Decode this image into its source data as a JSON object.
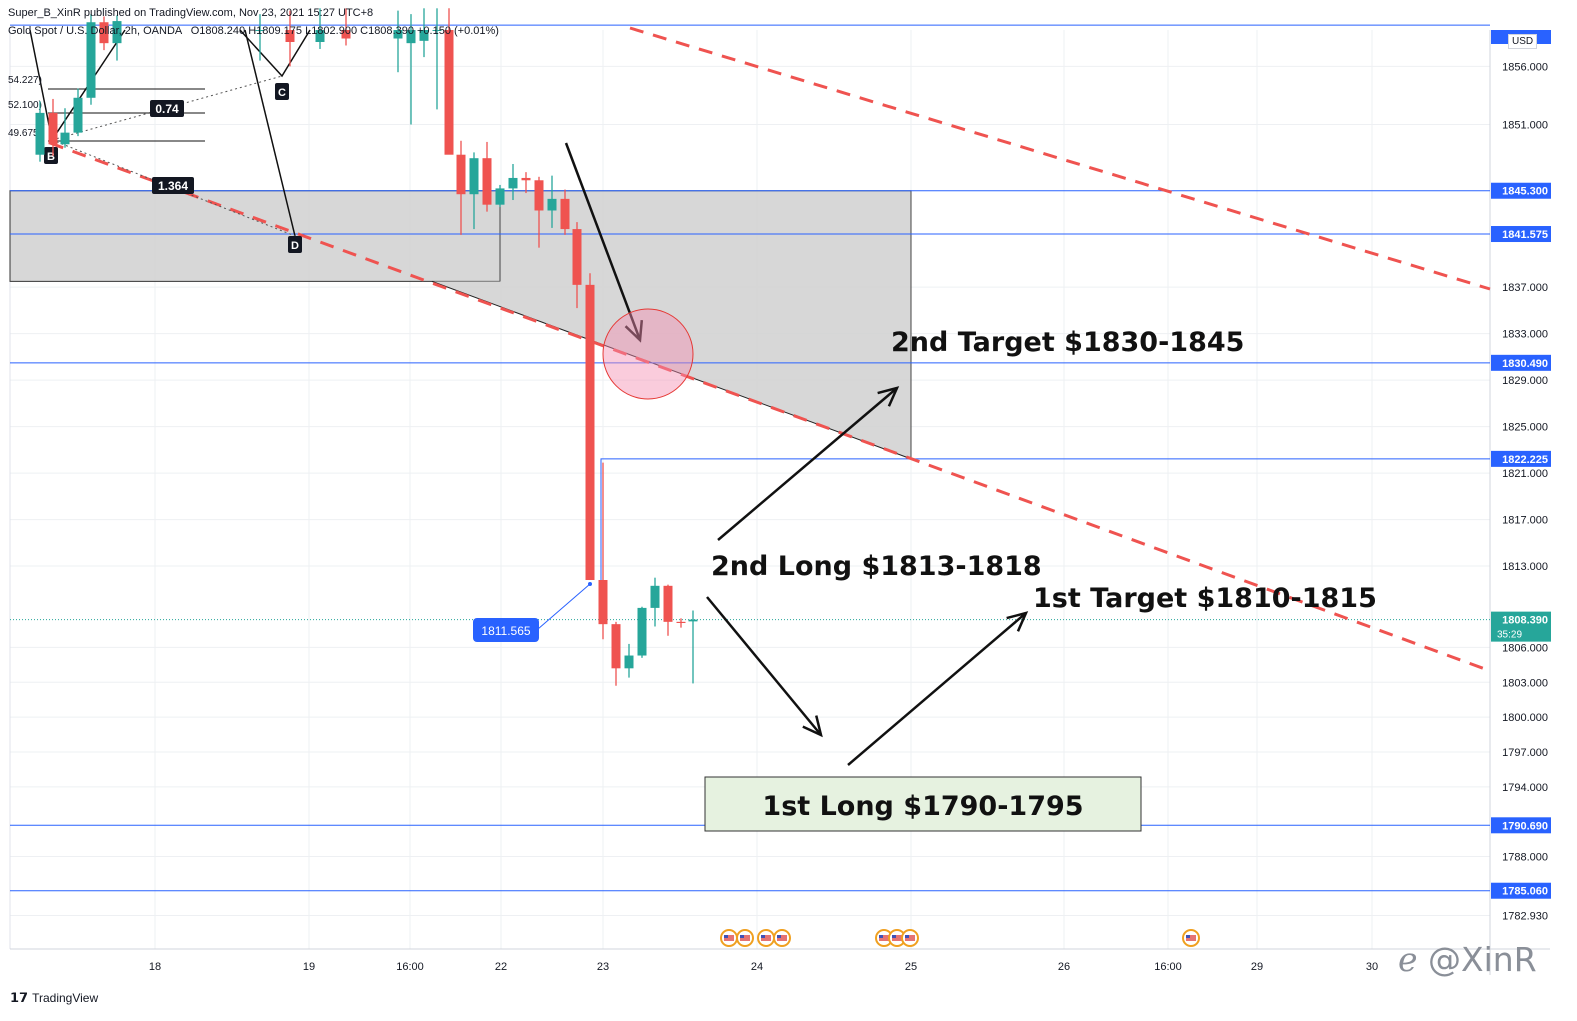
{
  "header": {
    "published": "Super_B_XinR published on TradingView.com, Nov 23, 2021 15:27 UTC+8",
    "symbol": "Gold Spot / U.S. Dollar, 2h, OANDA",
    "ohlc": "O1808.240  H1809.175  L1802.900  C1808.390  +0.150 (+0.01%)"
  },
  "currency": "USD",
  "brand": "TradingView",
  "watermark": "@XinR",
  "colors": {
    "up": "#26a69a",
    "down": "#ef5350",
    "level": "#2962ff",
    "trend": "#ef5350",
    "zone": "#d0d0d0"
  },
  "chart_data": {
    "type": "candlestick",
    "y_axis": {
      "range": [
        1780.8,
        1860.0
      ],
      "ticks": [
        1856.0,
        1851.0,
        1837.0,
        1833.0,
        1829.0,
        1825.0,
        1821.0,
        1817.0,
        1813.0,
        1806.0,
        1803.0,
        1800.0,
        1797.0,
        1794.0,
        1788.0,
        1782.93
      ]
    },
    "x_axis": {
      "ticks": [
        "18",
        "19",
        "16:00",
        "22",
        "23",
        "24",
        "25",
        "26",
        "16:00",
        "29",
        "30"
      ]
    },
    "price_labels": [
      {
        "text": "1845.300",
        "value": 1845.3
      },
      {
        "text": "1841.575",
        "value": 1841.575
      },
      {
        "text": "1830.490",
        "value": 1830.49
      },
      {
        "text": "1822.225",
        "value": 1822.225
      },
      {
        "text": "1790.690",
        "value": 1790.69
      },
      {
        "text": "1785.060",
        "value": 1785.06
      }
    ],
    "current_price": {
      "text": "1808.390",
      "countdown": "35:29",
      "value": 1808.39
    },
    "pattern_points": [
      {
        "label": "B"
      },
      {
        "label": "C"
      },
      {
        "label": "D"
      }
    ],
    "fib_labels": [
      "0.74",
      "1.364"
    ],
    "fib_levels": [
      "54.227)",
      "52.100)",
      "49.675)"
    ],
    "callout": "1811.565",
    "annotations": [
      "2nd Target $1830-1845",
      "2nd Long $1813-1818",
      "1st Target $1810-1815",
      "1st Long $1790-1795"
    ],
    "candles": [
      {
        "o": 1848.4,
        "h": 1853.0,
        "l": 1847.8,
        "c": 1852.0
      },
      {
        "o": 1852.0,
        "h": 1853.2,
        "l": 1848.3,
        "c": 1849.3
      },
      {
        "o": 1849.3,
        "h": 1852.4,
        "l": 1849.0,
        "c": 1850.3
      },
      {
        "o": 1850.3,
        "h": 1854.1,
        "l": 1850.0,
        "c": 1853.3
      },
      {
        "o": 1853.3,
        "h": 1860.5,
        "l": 1852.7,
        "c": 1859.8
      },
      {
        "o": 1859.8,
        "h": 1860.3,
        "l": 1857.4,
        "c": 1858.0
      },
      {
        "o": 1858.0,
        "h": 1860.4,
        "l": 1856.5,
        "c": 1859.9
      },
      {
        "o": 1848.4,
        "h": 1849.6,
        "l": 1841.5,
        "c": 1845.0
      },
      {
        "o": 1845.0,
        "h": 1848.6,
        "l": 1842.0,
        "c": 1848.1
      },
      {
        "o": 1848.1,
        "h": 1849.5,
        "l": 1843.5,
        "c": 1844.1
      },
      {
        "o": 1844.1,
        "h": 1845.8,
        "l": 1843.9,
        "c": 1845.5
      },
      {
        "o": 1845.5,
        "h": 1847.6,
        "l": 1844.5,
        "c": 1846.4
      },
      {
        "o": 1846.4,
        "h": 1846.9,
        "l": 1845.1,
        "c": 1846.2
      },
      {
        "o": 1846.2,
        "h": 1846.5,
        "l": 1840.4,
        "c": 1843.6
      },
      {
        "o": 1843.6,
        "h": 1846.6,
        "l": 1842.1,
        "c": 1844.6
      },
      {
        "o": 1844.6,
        "h": 1845.4,
        "l": 1841.5,
        "c": 1842.0
      },
      {
        "o": 1842.0,
        "h": 1842.6,
        "l": 1835.2,
        "c": 1837.2
      },
      {
        "o": 1837.2,
        "h": 1838.2,
        "l": 1811.8,
        "c": 1811.8
      },
      {
        "o": 1811.8,
        "h": 1821.9,
        "l": 1806.7,
        "c": 1808.0
      },
      {
        "o": 1808.0,
        "h": 1808.2,
        "l": 1802.7,
        "c": 1804.2
      },
      {
        "o": 1804.2,
        "h": 1806.3,
        "l": 1803.4,
        "c": 1805.3
      },
      {
        "o": 1805.3,
        "h": 1809.5,
        "l": 1805.1,
        "c": 1809.4
      },
      {
        "o": 1809.4,
        "h": 1812.0,
        "l": 1807.8,
        "c": 1811.3
      },
      {
        "o": 1811.3,
        "h": 1811.4,
        "l": 1807.0,
        "c": 1808.2
      },
      {
        "o": 1808.2,
        "h": 1808.5,
        "l": 1807.7,
        "c": 1808.1
      },
      {
        "o": 1808.24,
        "h": 1809.175,
        "l": 1802.9,
        "c": 1808.39
      }
    ]
  }
}
